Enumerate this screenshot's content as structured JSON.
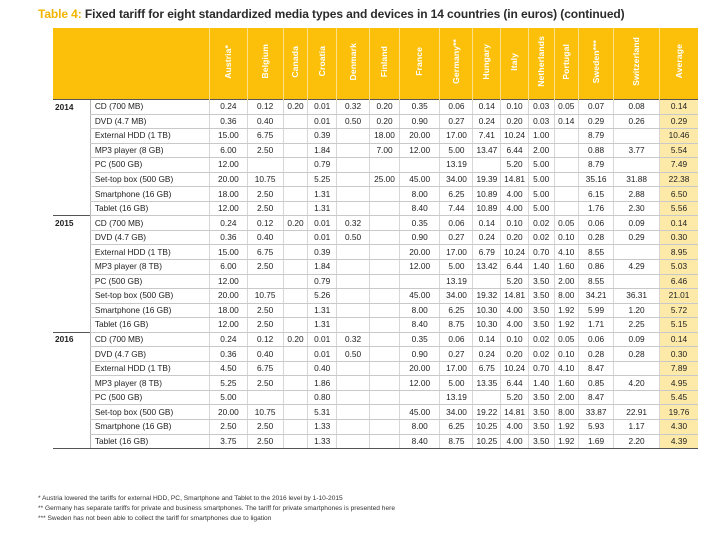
{
  "title": {
    "number": "Table 4:",
    "text": "Fixed tariff for eight standardized media types and devices in 14 countries (in euros) (continued)"
  },
  "columns": [
    "Austria*",
    "Belgium",
    "Canada",
    "Croatia",
    "Denmark",
    "Finland",
    "France",
    "Germany**",
    "Hungary",
    "Italy",
    "Netherlands",
    "Portugal",
    "Sweden***",
    "Switzerland",
    "Average"
  ],
  "groups": [
    {
      "year": "2014",
      "rows": [
        {
          "device": "CD (700 MB)",
          "values": [
            "0.24",
            "0.12",
            "0.20",
            "0.01",
            "0.32",
            "0.20",
            "0.35",
            "0.06",
            "0.14",
            "0.10",
            "0.03",
            "0.05",
            "0.07",
            "0.08",
            "0.14"
          ]
        },
        {
          "device": "DVD (4.7 MB)",
          "values": [
            "0.36",
            "0.40",
            "",
            "0.01",
            "0.50",
            "0.20",
            "0.90",
            "0.27",
            "0.24",
            "0.20",
            "0.03",
            "0.14",
            "0.29",
            "0.26",
            "0.29"
          ]
        },
        {
          "device": "External HDD (1 TB)",
          "values": [
            "15.00",
            "6.75",
            "",
            "0.39",
            "",
            "18.00",
            "20.00",
            "17.00",
            "7.41",
            "10.24",
            "1.00",
            "",
            "8.79",
            "",
            "10.46"
          ]
        },
        {
          "device": "MP3 player (8 GB)",
          "values": [
            "6.00",
            "2.50",
            "",
            "1.84",
            "",
            "7.00",
            "12.00",
            "5.00",
            "13.47",
            "6.44",
            "2.00",
            "",
            "0.88",
            "3.77",
            "5.54"
          ]
        },
        {
          "device": "PC (500 GB)",
          "values": [
            "12.00",
            "",
            "",
            "0.79",
            "",
            "",
            "",
            "13.19",
            "",
            "5.20",
            "5.00",
            "",
            "8.79",
            "",
            "7.49"
          ]
        },
        {
          "device": "Set-top box (500 GB)",
          "values": [
            "20.00",
            "10.75",
            "",
            "5.25",
            "",
            "25.00",
            "45.00",
            "34.00",
            "19.39",
            "14.81",
            "5.00",
            "",
            "35.16",
            "31.88",
            "22.38"
          ]
        },
        {
          "device": "Smartphone (16 GB)",
          "values": [
            "18.00",
            "2.50",
            "",
            "1.31",
            "",
            "",
            "8.00",
            "6.25",
            "10.89",
            "4.00",
            "5.00",
            "",
            "6.15",
            "2.88",
            "6.50"
          ]
        },
        {
          "device": "Tablet (16 GB)",
          "values": [
            "12.00",
            "2.50",
            "",
            "1.31",
            "",
            "",
            "8.40",
            "7.44",
            "10.89",
            "4.00",
            "5.00",
            "",
            "1.76",
            "2.30",
            "5.56"
          ]
        }
      ]
    },
    {
      "year": "2015",
      "rows": [
        {
          "device": "CD (700 MB)",
          "values": [
            "0.24",
            "0.12",
            "0.20",
            "0.01",
            "0.32",
            "",
            "0.35",
            "0.06",
            "0.14",
            "0.10",
            "0.02",
            "0.05",
            "0.06",
            "0.09",
            "0.14"
          ]
        },
        {
          "device": "DVD (4.7 GB)",
          "values": [
            "0.36",
            "0.40",
            "",
            "0.01",
            "0.50",
            "",
            "0.90",
            "0.27",
            "0.24",
            "0.20",
            "0.02",
            "0.10",
            "0.28",
            "0.29",
            "0.30"
          ]
        },
        {
          "device": "External HDD (1 TB)",
          "values": [
            "15.00",
            "6.75",
            "",
            "0.39",
            "",
            "",
            "20.00",
            "17.00",
            "6.79",
            "10.24",
            "0.70",
            "4.10",
            "8.55",
            "",
            "8.95"
          ]
        },
        {
          "device": "MP3 player (8 TB)",
          "values": [
            "6.00",
            "2.50",
            "",
            "1.84",
            "",
            "",
            "12.00",
            "5.00",
            "13.42",
            "6.44",
            "1.40",
            "1.60",
            "0.86",
            "4.29",
            "5.03"
          ]
        },
        {
          "device": "PC (500 GB)",
          "values": [
            "12.00",
            "",
            "",
            "0.79",
            "",
            "",
            "",
            "13.19",
            "",
            "5.20",
            "3.50",
            "2.00",
            "8.55",
            "",
            "6.46"
          ]
        },
        {
          "device": "Set-top box (500 GB)",
          "values": [
            "20.00",
            "10.75",
            "",
            "5.26",
            "",
            "",
            "45.00",
            "34.00",
            "19.32",
            "14.81",
            "3.50",
            "8.00",
            "34.21",
            "36.31",
            "21.01"
          ]
        },
        {
          "device": "Smartphone (16 GB)",
          "values": [
            "18.00",
            "2.50",
            "",
            "1.31",
            "",
            "",
            "8.00",
            "6.25",
            "10.30",
            "4.00",
            "3.50",
            "1.92",
            "5.99",
            "1.20",
            "5.72"
          ]
        },
        {
          "device": "Tablet (16 GB)",
          "values": [
            "12.00",
            "2.50",
            "",
            "1.31",
            "",
            "",
            "8.40",
            "8.75",
            "10.30",
            "4.00",
            "3.50",
            "1.92",
            "1.71",
            "2.25",
            "5.15"
          ]
        }
      ]
    },
    {
      "year": "2016",
      "rows": [
        {
          "device": "CD (700 MB)",
          "values": [
            "0.24",
            "0.12",
            "0.20",
            "0.01",
            "0.32",
            "",
            "0.35",
            "0.06",
            "0.14",
            "0.10",
            "0.02",
            "0.05",
            "0.06",
            "0.09",
            "0.14"
          ]
        },
        {
          "device": "DVD (4.7 GB)",
          "values": [
            "0.36",
            "0.40",
            "",
            "0.01",
            "0.50",
            "",
            "0.90",
            "0.27",
            "0.24",
            "0.20",
            "0.02",
            "0.10",
            "0.28",
            "0.28",
            "0.30"
          ]
        },
        {
          "device": "External HDD (1 TB)",
          "values": [
            "4.50",
            "6.75",
            "",
            "0.40",
            "",
            "",
            "20.00",
            "17.00",
            "6.75",
            "10.24",
            "0.70",
            "4.10",
            "8.47",
            "",
            "7.89"
          ]
        },
        {
          "device": "MP3 player (8 TB)",
          "values": [
            "5.25",
            "2.50",
            "",
            "1.86",
            "",
            "",
            "12.00",
            "5.00",
            "13.35",
            "6.44",
            "1.40",
            "1.60",
            "0.85",
            "4.20",
            "4.95"
          ]
        },
        {
          "device": "PC (500 GB)",
          "values": [
            "5.00",
            "",
            "",
            "0.80",
            "",
            "",
            "",
            "13.19",
            "",
            "5.20",
            "3.50",
            "2.00",
            "8.47",
            "",
            "5.45"
          ]
        },
        {
          "device": "Set-top box (500 GB)",
          "values": [
            "20.00",
            "10.75",
            "",
            "5.31",
            "",
            "",
            "45.00",
            "34.00",
            "19.22",
            "14.81",
            "3.50",
            "8.00",
            "33.87",
            "22.91",
            "19.76"
          ]
        },
        {
          "device": "Smartphone (16 GB)",
          "values": [
            "2.50",
            "2.50",
            "",
            "1.33",
            "",
            "",
            "8.00",
            "6.25",
            "10.25",
            "4.00",
            "3.50",
            "1.92",
            "5.93",
            "1.17",
            "4.30"
          ]
        },
        {
          "device": "Tablet (16 GB)",
          "values": [
            "3.75",
            "2.50",
            "",
            "1.33",
            "",
            "",
            "8.40",
            "8.75",
            "10.25",
            "4.00",
            "3.50",
            "1.92",
            "1.69",
            "2.20",
            "4.39"
          ]
        }
      ]
    }
  ],
  "notes": [
    "* Austria lowered the tariffs for external HDD, PC, Smartphone and Tablet to the 2016 level by 1-10-2015",
    "** Germany has separate tariffs for private and business smartphones. The tariff for private smartphones is presented here",
    "*** Sweden has not been able to collect the tariff for smartphones due to ligation"
  ],
  "colors": {
    "header": "#fcc00b",
    "average_cell": "#fde9a8",
    "title_number": "#f3b400"
  }
}
